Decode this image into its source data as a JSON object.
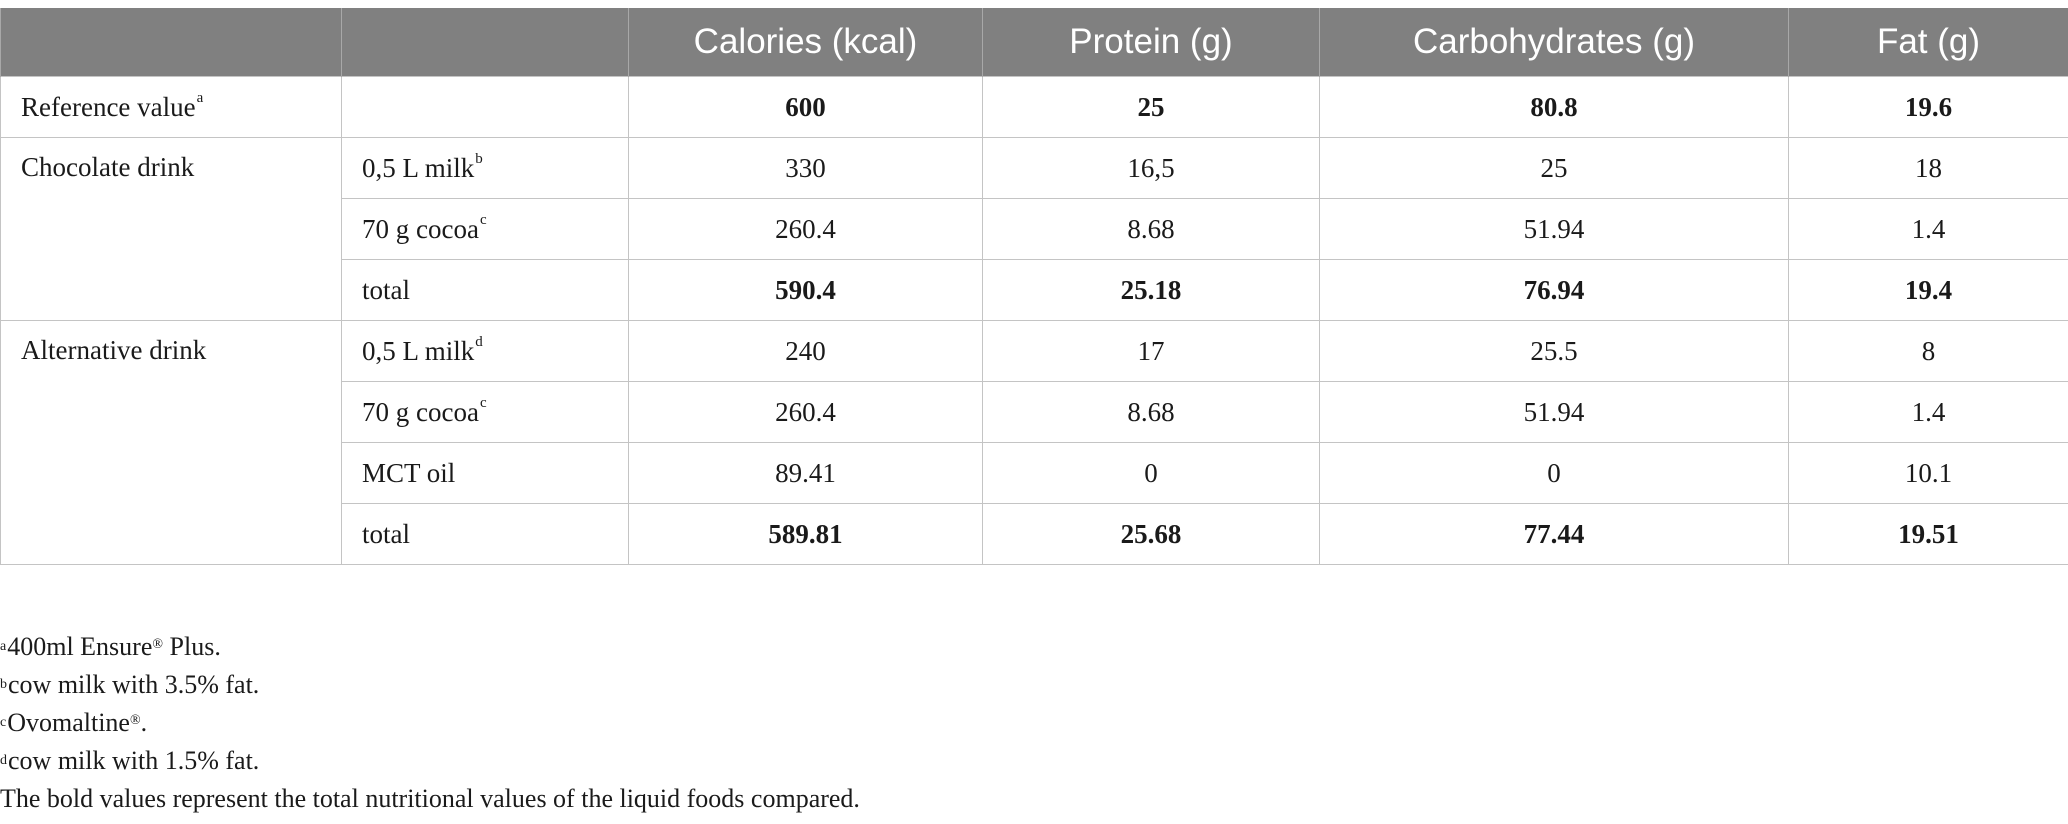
{
  "table": {
    "headers": [
      "",
      "",
      "Calories (kcal)",
      "Protein (g)",
      "Carbohydrates (g)",
      "Fat (g)"
    ],
    "reference": {
      "label": "Reference value",
      "label_mark": "a",
      "values": [
        "600",
        "25",
        "80.8",
        "19.6"
      ]
    },
    "chocolate": {
      "label": "Chocolate drink",
      "rows": [
        {
          "label": "0,5 L milk",
          "mark": "b",
          "values": [
            "330",
            "16,5",
            "25",
            "18"
          ]
        },
        {
          "label": "70 g cocoa",
          "mark": "c",
          "values": [
            "260.4",
            "8.68",
            "51.94",
            "1.4"
          ]
        },
        {
          "label": "total",
          "mark": "",
          "values": [
            "590.4",
            "25.18",
            "76.94",
            "19.4"
          ]
        }
      ]
    },
    "alternative": {
      "label": "Alternative drink",
      "rows": [
        {
          "label": "0,5 L milk",
          "mark": "d",
          "values": [
            "240",
            "17",
            "25.5",
            "8"
          ]
        },
        {
          "label": "70 g cocoa",
          "mark": "c",
          "values": [
            "260.4",
            "8.68",
            "51.94",
            "1.4"
          ]
        },
        {
          "label": "MCT oil",
          "mark": "",
          "values": [
            "89.41",
            "0",
            "0",
            "10.1"
          ]
        },
        {
          "label": "total",
          "mark": "",
          "values": [
            "589.81",
            "25.68",
            "77.44",
            "19.51"
          ]
        }
      ]
    }
  },
  "footnotes": {
    "a": {
      "mark": "a",
      "text1": "400ml Ensure",
      "reg": "®",
      "text2": " Plus."
    },
    "b": {
      "mark": "b",
      "text": "cow milk with 3.5% fat."
    },
    "c": {
      "mark": "c",
      "text1": "Ovomaltine",
      "reg": "®",
      "text2": "."
    },
    "d": {
      "mark": "d",
      "text": "cow milk with 1.5% fat."
    },
    "bold_note": "The bold values represent the total nutritional values of the liquid foods compared."
  },
  "colors": {
    "header_bg": "#808080",
    "header_text": "#ffffff",
    "grid": "#c4c4c4"
  }
}
